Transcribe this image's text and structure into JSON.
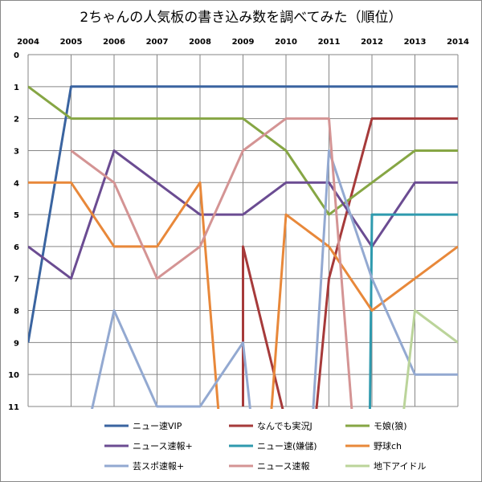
{
  "chart_data": {
    "type": "line",
    "title": "2ちゃんの人気板の書き込み数を調べてみた（順位）",
    "xlabel": "",
    "ylabel": "",
    "x": [
      2004,
      2005,
      2006,
      2007,
      2008,
      2009,
      2010,
      2011,
      2012,
      2013,
      2014
    ],
    "xlim": [
      2004,
      2014
    ],
    "ylim": [
      0,
      11
    ],
    "y_inverted": true,
    "y_ticks": [
      0,
      1,
      2,
      3,
      4,
      5,
      6,
      7,
      8,
      9,
      10,
      11
    ],
    "grid": true,
    "legend_position": "bottom",
    "series": [
      {
        "name": "ニュー速VIP",
        "color": "#3A64A0",
        "points": [
          [
            2004,
            9
          ],
          [
            2005,
            1
          ],
          [
            2006,
            1
          ],
          [
            2007,
            1
          ],
          [
            2008,
            1
          ],
          [
            2009,
            1
          ],
          [
            2010,
            1
          ],
          [
            2011,
            1
          ],
          [
            2012,
            1
          ],
          [
            2013,
            1
          ],
          [
            2014,
            1
          ]
        ]
      },
      {
        "name": "なんでも実況J",
        "color": "#A63A3A",
        "points": [
          [
            2009,
            11
          ],
          [
            2009,
            6
          ],
          [
            2010,
            11.5
          ],
          [
            2010.5,
            14
          ],
          [
            2011,
            7
          ],
          [
            2012,
            2
          ],
          [
            2013,
            2
          ],
          [
            2014,
            2
          ]
        ]
      },
      {
        "name": "モ娘(狼)",
        "color": "#86A644",
        "points": [
          [
            2004,
            1
          ],
          [
            2005,
            2
          ],
          [
            2006,
            2
          ],
          [
            2007,
            2
          ],
          [
            2008,
            2
          ],
          [
            2009,
            2
          ],
          [
            2010,
            3
          ],
          [
            2011,
            5
          ],
          [
            2012,
            4
          ],
          [
            2013,
            3
          ],
          [
            2014,
            3
          ]
        ]
      },
      {
        "name": "ニュース速報+",
        "color": "#6B4C92",
        "points": [
          [
            2004,
            6
          ],
          [
            2005,
            7
          ],
          [
            2006,
            3
          ],
          [
            2007,
            4
          ],
          [
            2008,
            5
          ],
          [
            2009,
            5
          ],
          [
            2010,
            4
          ],
          [
            2011,
            4
          ],
          [
            2012,
            6
          ],
          [
            2013,
            4
          ],
          [
            2014,
            4
          ]
        ]
      },
      {
        "name": "ニュー速(嫌儲)",
        "color": "#2F9AAE",
        "points": [
          [
            2011.93,
            14
          ],
          [
            2012,
            5
          ],
          [
            2013,
            5
          ],
          [
            2014,
            5
          ]
        ]
      },
      {
        "name": "野球ch",
        "color": "#E8883A",
        "points": [
          [
            2004,
            4
          ],
          [
            2005,
            4
          ],
          [
            2006,
            6
          ],
          [
            2007,
            6
          ],
          [
            2008,
            4
          ],
          [
            2008.6,
            14
          ],
          [
            2009.5,
            14
          ],
          [
            2010,
            5
          ],
          [
            2011,
            6
          ],
          [
            2012,
            8
          ],
          [
            2013,
            7
          ],
          [
            2014,
            6
          ]
        ]
      },
      {
        "name": "芸スポ速報+",
        "color": "#93A9D1",
        "points": [
          [
            2005,
            14
          ],
          [
            2006,
            8
          ],
          [
            2007,
            11
          ],
          [
            2008,
            11
          ],
          [
            2009,
            9
          ],
          [
            2009.4,
            14
          ],
          [
            2010.5,
            14
          ],
          [
            2011,
            3
          ],
          [
            2012,
            7
          ],
          [
            2013,
            10
          ],
          [
            2014,
            10
          ]
        ]
      },
      {
        "name": "ニュース速報",
        "color": "#D49494",
        "points": [
          [
            2005,
            3
          ],
          [
            2006,
            4
          ],
          [
            2007,
            7
          ],
          [
            2008,
            6
          ],
          [
            2009,
            3
          ],
          [
            2010,
            2
          ],
          [
            2011,
            2
          ],
          [
            2011.7,
            14
          ]
        ]
      },
      {
        "name": "地下アイドル",
        "color": "#BBD49A",
        "points": [
          [
            2012.5,
            14
          ],
          [
            2013,
            8
          ],
          [
            2014,
            9
          ]
        ]
      }
    ]
  }
}
